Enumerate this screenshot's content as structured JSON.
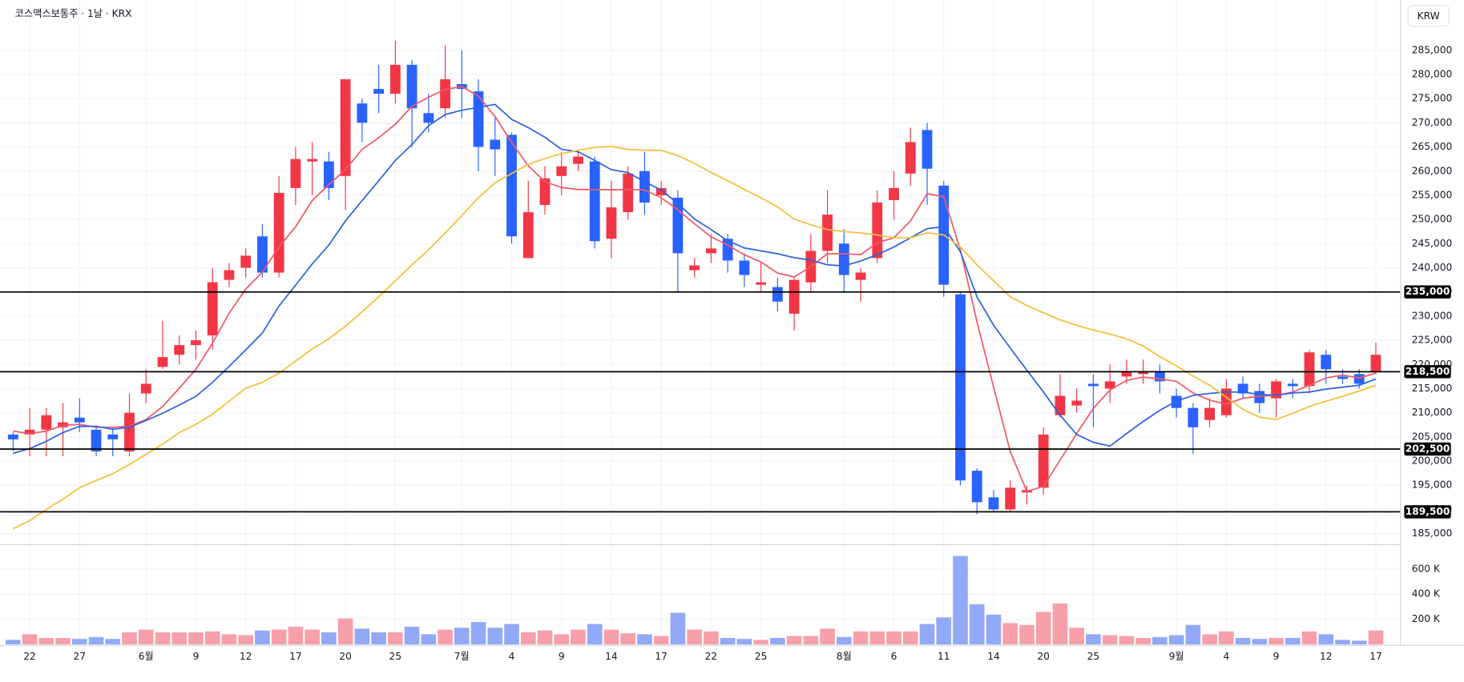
{
  "chart_data": {
    "type": "candlestick",
    "title": "코스맥스보통주 · 1날 · KRX",
    "currency": "KRW",
    "categories": [
      null,
      "22",
      null,
      null,
      "27",
      null,
      null,
      null,
      "6월",
      null,
      null,
      "9",
      null,
      null,
      "12",
      null,
      null,
      "17",
      null,
      null,
      "20",
      null,
      null,
      "25",
      null,
      null,
      null,
      "7월",
      null,
      null,
      "4",
      null,
      null,
      "9",
      null,
      null,
      "14",
      null,
      null,
      "17",
      null,
      null,
      "22",
      null,
      null,
      "25",
      null,
      null,
      null,
      null,
      "8월",
      null,
      null,
      "6",
      null,
      null,
      "11",
      null,
      null,
      "14",
      null,
      null,
      "20",
      null,
      null,
      "25",
      null,
      null,
      null,
      null,
      "9월",
      null,
      null,
      "4",
      null,
      null,
      "9",
      null,
      null,
      "12",
      null,
      null,
      "17"
    ],
    "open": [
      205500,
      205500,
      206500,
      207000,
      209000,
      206500,
      205500,
      202000,
      214000,
      219500,
      222000,
      224000,
      226000,
      237500,
      240000,
      246500,
      239000,
      256500,
      262000,
      262000,
      259000,
      274000,
      277000,
      276000,
      282000,
      272000,
      273000,
      278000,
      276500,
      266500,
      267500,
      242000,
      253000,
      259000,
      261500,
      262000,
      246000,
      251500,
      260000,
      255000,
      254500,
      239500,
      243000,
      246000,
      241500,
      236500,
      236000,
      230500,
      237000,
      243500,
      245000,
      237500,
      242000,
      254000,
      259500,
      268500,
      257000,
      234500,
      198000,
      192500,
      190000,
      193500,
      194500,
      209500,
      211500,
      216000,
      215000,
      217500,
      218000,
      218500,
      213500,
      211000,
      208500,
      209500,
      216000,
      214500,
      213000,
      216000,
      215500,
      222000,
      217500,
      218000,
      218500
    ],
    "high": [
      206000,
      211000,
      211000,
      212000,
      213000,
      207000,
      207000,
      214000,
      219000,
      229000,
      226000,
      227000,
      240000,
      241000,
      244000,
      249000,
      259000,
      265000,
      266000,
      264000,
      279000,
      275000,
      282000,
      287000,
      283000,
      276000,
      286000,
      285000,
      279000,
      271000,
      268000,
      258000,
      261000,
      264000,
      264000,
      263000,
      258000,
      261000,
      264000,
      258000,
      256000,
      242000,
      247000,
      247000,
      243000,
      241000,
      238000,
      238000,
      247000,
      256000,
      248000,
      240000,
      256000,
      260000,
      269000,
      270000,
      258000,
      235000,
      198500,
      194000,
      196000,
      195000,
      207000,
      218000,
      215000,
      218000,
      220000,
      221000,
      221000,
      220000,
      215000,
      212000,
      213000,
      217000,
      217500,
      216000,
      217000,
      217000,
      223000,
      223000,
      219000,
      219000,
      224500
    ],
    "low": [
      202000,
      201000,
      201000,
      201000,
      206000,
      201000,
      201000,
      201000,
      212000,
      219000,
      220000,
      221000,
      223000,
      236000,
      238000,
      238000,
      238000,
      253000,
      255000,
      254000,
      252000,
      266000,
      272000,
      274000,
      265000,
      268000,
      271000,
      271000,
      260000,
      259000,
      245000,
      242000,
      251000,
      255000,
      260000,
      244000,
      242000,
      250000,
      251000,
      253000,
      235000,
      238000,
      241000,
      239000,
      236000,
      235000,
      231000,
      227000,
      235000,
      241000,
      235000,
      233000,
      241000,
      250000,
      257000,
      253000,
      234000,
      195000,
      189000,
      189500,
      189500,
      191000,
      193000,
      209000,
      210000,
      207000,
      212000,
      216000,
      216000,
      214000,
      209000,
      201500,
      207000,
      209000,
      213000,
      210000,
      209000,
      213000,
      214000,
      216000,
      216000,
      215000,
      218000
    ],
    "close": [
      204500,
      206500,
      209500,
      208000,
      208000,
      202000,
      204500,
      210000,
      216000,
      221500,
      224000,
      225000,
      237000,
      239500,
      242500,
      239000,
      255500,
      262500,
      262500,
      256500,
      279000,
      270000,
      276000,
      282000,
      273000,
      270000,
      279000,
      277000,
      265000,
      264500,
      246500,
      251500,
      258500,
      261000,
      263000,
      245500,
      252500,
      259500,
      253500,
      256500,
      243000,
      240500,
      244000,
      241500,
      238500,
      237000,
      233000,
      237500,
      243500,
      251000,
      238500,
      239000,
      253500,
      256500,
      266000,
      260500,
      236500,
      196000,
      191500,
      190000,
      194500,
      194000,
      205500,
      213500,
      212500,
      215500,
      216500,
      218500,
      218500,
      216500,
      211000,
      207000,
      211000,
      215000,
      214000,
      212000,
      216500,
      215500,
      222500,
      219000,
      217000,
      216000,
      222000
    ],
    "volume": [
      37000,
      81000,
      52000,
      52000,
      44000,
      59000,
      44000,
      96000,
      118000,
      96000,
      96000,
      96000,
      104000,
      81000,
      74000,
      111000,
      118000,
      141000,
      118000,
      96000,
      207000,
      126000,
      96000,
      96000,
      141000,
      81000,
      118000,
      133000,
      178000,
      133000,
      163000,
      96000,
      111000,
      81000,
      118000,
      163000,
      118000,
      89000,
      81000,
      67000,
      252000,
      118000,
      104000,
      52000,
      44000,
      37000,
      52000,
      67000,
      67000,
      126000,
      59000,
      104000,
      104000,
      104000,
      104000,
      163000,
      215000,
      703000,
      319000,
      237000,
      170000,
      155000,
      259000,
      326000,
      133000,
      81000,
      74000,
      67000,
      52000,
      59000,
      74000,
      155000,
      81000,
      104000,
      52000,
      44000,
      52000,
      52000,
      104000,
      81000,
      37000,
      30000,
      111000
    ],
    "up_color": "#f23645",
    "down_color": "#2962ff",
    "volume_up_color": "#f7a0aa",
    "volume_down_color": "#92a9f7",
    "moving_averages": [
      {
        "color": "#ee5a6a",
        "values": [
          206200,
          205700,
          206200,
          207400,
          207600,
          207000,
          207000,
          207200,
          208600,
          211300,
          215100,
          219000,
          224400,
          230600,
          235600,
          239100,
          244300,
          248500,
          253900,
          257200,
          260300,
          264500,
          266900,
          269700,
          273400,
          275300,
          276900,
          277500,
          275500,
          271300,
          265900,
          261100,
          257800,
          256600,
          256200,
          256200,
          256100,
          256200,
          256100,
          254500,
          252000,
          249100,
          246400,
          244700,
          242700,
          241200,
          238900,
          238100,
          240200,
          242900,
          242900,
          242700,
          245200,
          246200,
          249700,
          255300,
          254700,
          243700,
          228800,
          215300,
          202000,
          193700,
          194800,
          200200,
          205700,
          210900,
          214700,
          216700,
          217400,
          217000,
          216500,
          214100,
          212600,
          211800,
          213000,
          213400,
          213600,
          214300,
          215700,
          217200,
          217800,
          217200,
          218200
        ]
      },
      {
        "color": "#2f63e0",
        "values": [
          201600,
          202600,
          204100,
          205900,
          207200,
          207200,
          206600,
          207000,
          208400,
          209900,
          211600,
          213400,
          216300,
          219600,
          223000,
          226500,
          232100,
          236400,
          240800,
          244700,
          249700,
          253900,
          258000,
          262200,
          265500,
          269400,
          271700,
          272600,
          273200,
          273800,
          270700,
          269000,
          267000,
          264500,
          264000,
          262200,
          260300,
          259700,
          257800,
          256100,
          253300,
          250100,
          247900,
          245600,
          244100,
          243500,
          242900,
          242100,
          241600,
          240600,
          240400,
          241400,
          242700,
          244300,
          246200,
          248100,
          248500,
          243300,
          234000,
          228100,
          223400,
          218800,
          214300,
          209500,
          205500,
          203900,
          203100,
          205700,
          208200,
          210500,
          212400,
          213600,
          214000,
          214300,
          214300,
          213800,
          213600,
          214100,
          214300,
          214900,
          215300,
          215700,
          217000
        ]
      },
      {
        "color": "#f5bf3a",
        "values": [
          186000,
          187700,
          190000,
          192100,
          194500,
          196000,
          197400,
          199300,
          201400,
          203500,
          205900,
          207600,
          209700,
          212400,
          215100,
          216300,
          218200,
          220700,
          223200,
          225300,
          227900,
          230900,
          234000,
          237300,
          240600,
          243700,
          247200,
          250800,
          254500,
          257600,
          259500,
          261400,
          262600,
          263600,
          264300,
          264900,
          265100,
          264500,
          264300,
          264300,
          263200,
          261600,
          259700,
          258000,
          256200,
          254500,
          252600,
          250100,
          248900,
          247900,
          247500,
          247200,
          246800,
          246200,
          246200,
          247200,
          246800,
          244300,
          240600,
          237300,
          234000,
          232200,
          230700,
          229200,
          228100,
          227100,
          226300,
          225300,
          223800,
          221600,
          219700,
          217600,
          215700,
          213200,
          210700,
          209100,
          208600,
          209900,
          211300,
          212400,
          213400,
          214500,
          215700
        ]
      }
    ],
    "price_lines": [
      {
        "value": 235000,
        "label": "235,000"
      },
      {
        "value": 218500,
        "label": "218,500"
      },
      {
        "value": 202500,
        "label": "202,500"
      },
      {
        "value": 189500,
        "label": "189,500"
      }
    ],
    "price_line_color": "#000000",
    "ylim": [
      182900,
      290000
    ],
    "yticks": [
      {
        "value": 185000,
        "label": "185,000"
      },
      {
        "value": 190000,
        "label": "190,000"
      },
      {
        "value": 195000,
        "label": "195,000"
      },
      {
        "value": 200000,
        "label": "200,000"
      },
      {
        "value": 205000,
        "label": "205,000"
      },
      {
        "value": 210000,
        "label": "210,000"
      },
      {
        "value": 215000,
        "label": "215,000"
      },
      {
        "value": 220000,
        "label": "220,000"
      },
      {
        "value": 225000,
        "label": "225,000"
      },
      {
        "value": 230000,
        "label": "230,000"
      },
      {
        "value": 235000,
        "label": "235,000"
      },
      {
        "value": 240000,
        "label": "240,000"
      },
      {
        "value": 245000,
        "label": "245,000"
      },
      {
        "value": 250000,
        "label": "250,000"
      },
      {
        "value": 255000,
        "label": "255,000"
      },
      {
        "value": 260000,
        "label": "260,000"
      },
      {
        "value": 265000,
        "label": "265,000"
      },
      {
        "value": 270000,
        "label": "270,000"
      },
      {
        "value": 275000,
        "label": "275,000"
      },
      {
        "value": 280000,
        "label": "280,000"
      },
      {
        "value": 285000,
        "label": "285,000"
      }
    ],
    "volume_ylim": [
      0,
      778000
    ],
    "volume_yticks": [
      {
        "value": 200000,
        "label": "200 K"
      },
      {
        "value": 400000,
        "label": "400 K"
      },
      {
        "value": 600000,
        "label": "600 K"
      }
    ],
    "grid": true
  }
}
